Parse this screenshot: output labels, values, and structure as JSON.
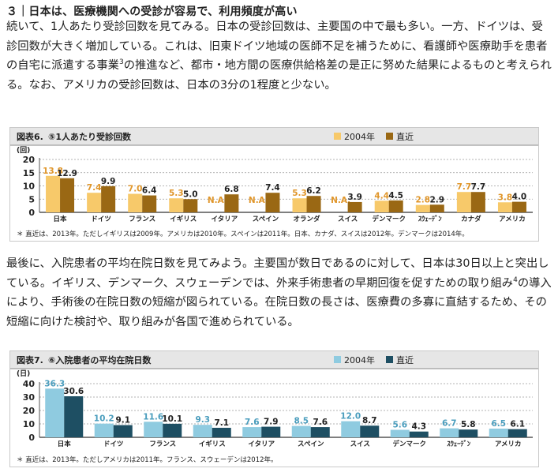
{
  "heading": "３｜日本は、医療機関への受診が容易で、利用頻度が高い",
  "para1": {
    "before_note": "続いて、1人あたり受診回数を見てみる。日本の受診回数は、主要国の中で最も多い。一方、ドイツは、受診回数が大きく増加している。これは、旧東ドイツ地域の医師不足を補うために、看護師や医療助手を患者の自宅に派遣する事業",
    "note_ref": "3",
    "after_note": "の推進など、都市・地方間の医療供給格差の是正に努めた結果によるものと考えられる。なお、アメリカの受診回数は、日本の3分の1程度と少ない。"
  },
  "para2": {
    "before_note": "最後に、入院患者の平均在院日数を見てみよう。主要国が数日であるのに対して、日本は30日以上と突出している。イギリス、デンマーク、スウェーデンでは、外来手術患者の早期回復を促すための取り組み",
    "note_ref": "4",
    "after_note": "の導入により、手術後の在院日数の短縮が図られている。在院日数の長さは、医療費の多寡に直結するため、その短縮に向けた検討や、取り組みが各国で進められている。"
  },
  "chart_data": [
    {
      "type": "bar",
      "figure_label": "図表6.",
      "title": "⑤1人あたり受診回数",
      "ylabel": "(回)",
      "ylim": [
        0,
        20
      ],
      "yticks": [
        0,
        5,
        10,
        15,
        20
      ],
      "grid": true,
      "legend_position": "top-right",
      "categories": [
        "日本",
        "ドイツ",
        "フランス",
        "イギリス",
        "イタリア",
        "スペイン",
        "オランダ",
        "スイス",
        "デンマーク",
        "ｽｳｪｰﾃﾞﾝ",
        "カナダ",
        "アメリカ"
      ],
      "series": [
        {
          "name": "2004年",
          "color": "#f7c96a",
          "label_color": "#e0962a",
          "values": [
            13.8,
            7.4,
            7.0,
            5.3,
            null,
            null,
            5.3,
            null,
            4.4,
            2.8,
            7.7,
            3.8
          ],
          "labels": [
            "13.8",
            "7.4",
            "7.0",
            "5.3",
            "N.A.",
            "N.A.",
            "5.3",
            "N.A.",
            "4.4",
            "2.8",
            "7.7",
            "3.8"
          ]
        },
        {
          "name": "直近",
          "color": "#9a6814",
          "label_color": "#222222",
          "values": [
            12.9,
            9.9,
            6.4,
            5.0,
            6.8,
            7.4,
            6.2,
            3.9,
            4.5,
            2.9,
            7.7,
            4.0
          ],
          "labels": [
            "12.9",
            "9.9",
            "6.4",
            "5.0",
            "6.8",
            "7.4",
            "6.2",
            "3.9",
            "4.5",
            "2.9",
            "7.7",
            "4.0"
          ]
        }
      ],
      "footnote": "＊ 直近は、2013年。ただしイギリスは2009年。アメリカは2010年。スペインは2011年。日本、カナダ、スイスは2012年。デンマークは2014年。"
    },
    {
      "type": "bar",
      "figure_label": "図表7.",
      "title": "⑥入院患者の平均在院日数",
      "ylabel": "(日)",
      "ylim": [
        0,
        40
      ],
      "yticks": [
        0,
        10,
        20,
        30,
        40
      ],
      "grid": true,
      "legend_position": "top-right",
      "categories": [
        "日本",
        "ドイツ",
        "フランス",
        "イギリス",
        "イタリア",
        "スペイン",
        "スイス",
        "デンマーク",
        "ｽｳｪｰﾃﾞﾝ",
        "アメリカ"
      ],
      "series": [
        {
          "name": "2004年",
          "color": "#8fcbe0",
          "label_color": "#4a9dbd",
          "values": [
            36.3,
            10.2,
            11.6,
            9.3,
            7.6,
            8.5,
            12.0,
            5.6,
            6.7,
            6.5
          ],
          "labels": [
            "36.3",
            "10.2",
            "11.6",
            "9.3",
            "7.6",
            "8.5",
            "12.0",
            "5.6",
            "6.7",
            "6.5"
          ]
        },
        {
          "name": "直近",
          "color": "#1e4f63",
          "label_color": "#222222",
          "values": [
            30.6,
            9.1,
            10.1,
            7.1,
            7.9,
            7.6,
            8.7,
            4.3,
            5.8,
            6.1
          ],
          "labels": [
            "30.6",
            "9.1",
            "10.1",
            "7.1",
            "7.9",
            "7.6",
            "8.7",
            "4.3",
            "5.8",
            "6.1"
          ]
        }
      ],
      "footnote": "＊ 直近は、2013年。ただしアメリカは2011年。フランス、スウェーデンは2012年。"
    }
  ]
}
